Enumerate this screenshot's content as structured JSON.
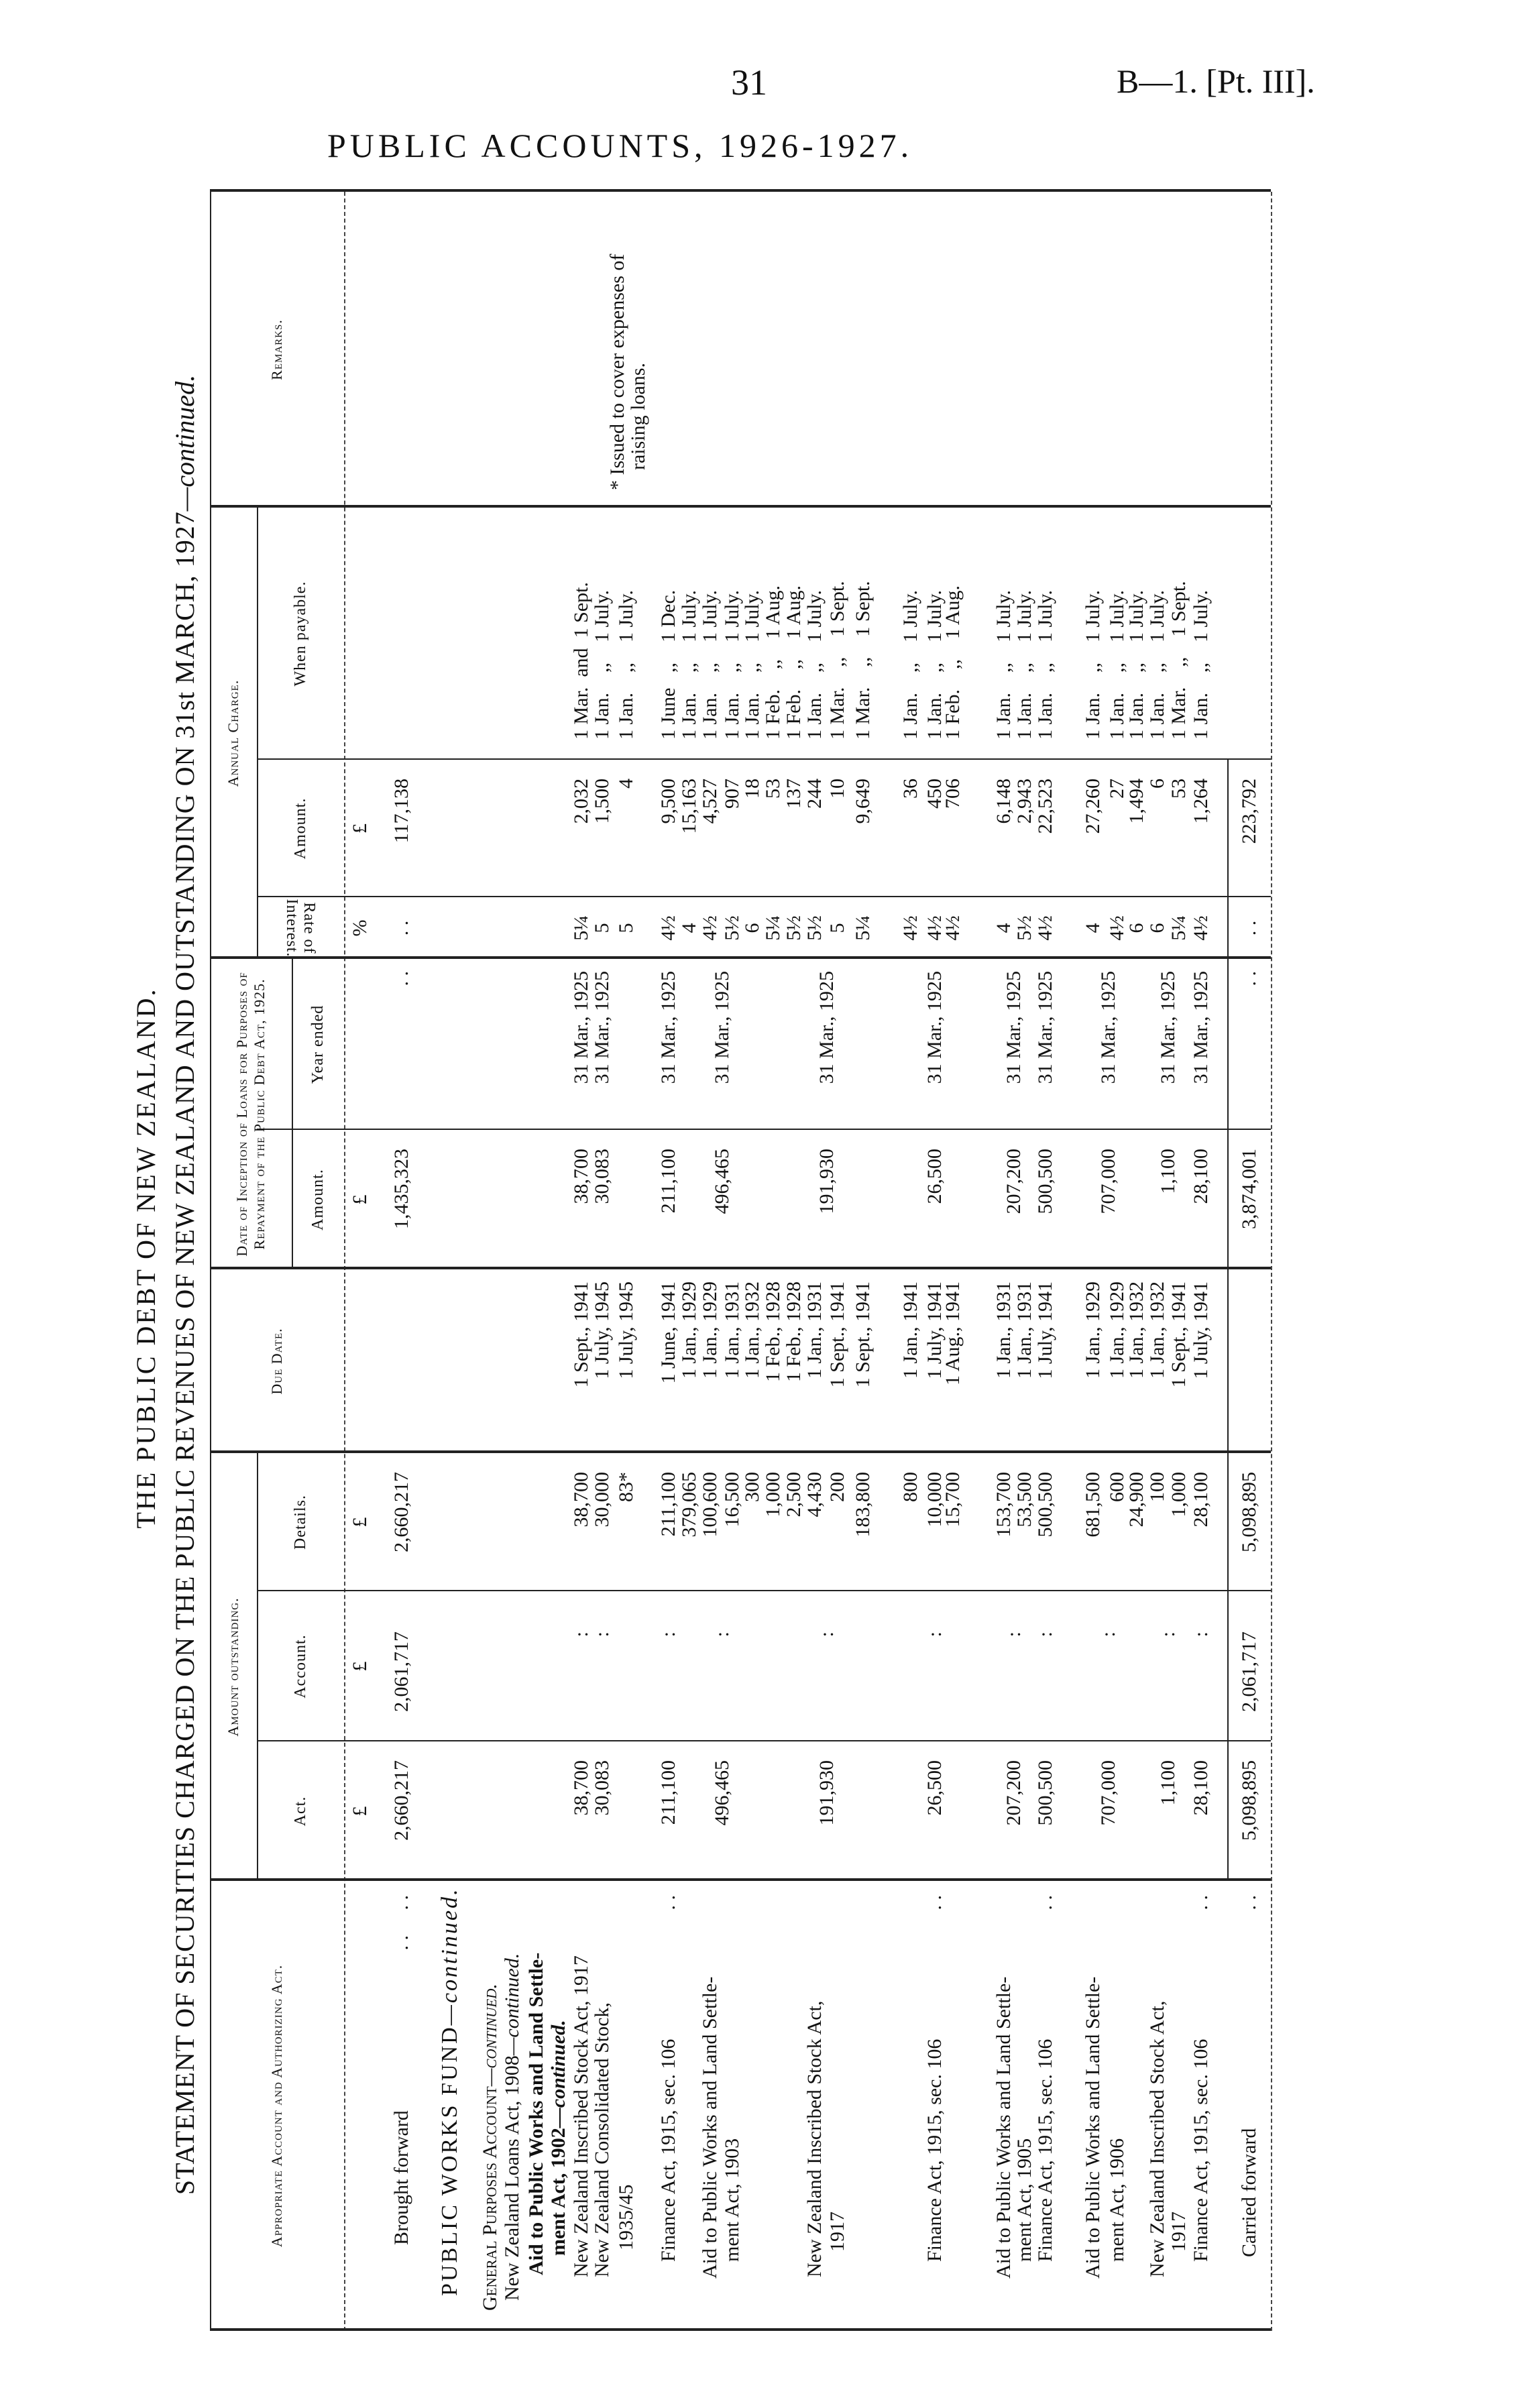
{
  "page": {
    "page_number": "31",
    "reference": "B—1. [Pt. III].",
    "running_title": "PUBLIC ACCOUNTS, 1926-1927."
  },
  "titles": {
    "main": "THE PUBLIC DEBT OF NEW ZEALAND.",
    "statement": "STATEMENT OF SECURITIES CHARGED ON THE PUBLIC REVENUES OF NEW ZEALAND AND OUTSTANDING ON 31st MARCH, 1927",
    "statement_suffix": "—continued."
  },
  "header": {
    "authorizing_act": "Appropriate Account and Authorizing Act.",
    "amount_outstanding": "Amount outstanding.",
    "act": "Act.",
    "account": "Account.",
    "details": "Details.",
    "due_date": "Due Date.",
    "inception": "Date of Inception of Loans for Purposes of Repayment of the Public Debt Act, 1925.",
    "inception_amount": "Amount.",
    "year_ended": "Year ended",
    "rate": "Rate of Interest.",
    "annual_charge": "Annual Charge.",
    "charge_amount": "Amount.",
    "when_payable": "When payable.",
    "remarks": "Remarks."
  },
  "remarks": {
    "line1": "* Issued to cover expenses of",
    "line2": "raising loans."
  },
  "table": {
    "rows": [
      {
        "act": "£",
        "account": "£",
        "details": "£",
        "inception_amount": "£",
        "rate": "%",
        "charge_amount": "£"
      },
      {
        "desc": "Brought forward",
        "leader": ". .     . .",
        "act": "2,660,217",
        "account": "2,061,717",
        "details": "2,660,217",
        "inception_amount": "1,435,323",
        "year_ended": ". .",
        "rate": ". .",
        "charge_amount": "117,138"
      },
      {
        "desc": "PUBLIC WORKS FUND",
        "cont": "—continued."
      },
      {
        "desc": "General Purposes Account",
        "cont": "—continued."
      },
      {
        "desc": "New Zealand Loans Act, 1908",
        "cont": "—continued."
      },
      {
        "desc": "Aid to Public Works and Land Settle-"
      },
      {
        "desc": "ment Act, 1902",
        "cont": "—continued."
      },
      {
        "desc": "New Zealand Inscribed Stock Act, 1917",
        "act": "38,700",
        "account": ":",
        "details": "38,700",
        "due_date": "1 Sept., 1941",
        "inception_amount": "38,700",
        "year_ended": "31 Mar., 1925",
        "rate": "5¼",
        "charge_amount": "2,032",
        "when_payable": "1 Mar.  and  1 Sept."
      },
      {
        "desc": "New Zealand Consolidated Stock,",
        "act": "30,083",
        "account": ":",
        "details": "30,000",
        "due_date": "1 July, 1945",
        "inception_amount": "30,083",
        "year_ended": "31 Mar., 1925",
        "rate": "5",
        "charge_amount": "1,500",
        "when_payable": "1 Jan.    ,,    1 July."
      },
      {
        "desc": "1935/45",
        "details": "83*",
        "due_date": "1 July, 1945",
        "rate": "5",
        "charge_amount": "4",
        "when_payable": "1 Jan.    ,,    1 July."
      },
      {
        "desc": "Finance Act, 1915, sec. 106",
        "leader": ". .",
        "act": "211,100",
        "account": ":",
        "details": "211,100",
        "due_date": "1 June, 1941",
        "inception_amount": "211,100",
        "year_ended": "31 Mar., 1925",
        "rate": "4½",
        "charge_amount": "9,500",
        "when_payable": "1 June   ,,    1 Dec."
      },
      {
        "details": "379,065",
        "due_date": "1 Jan., 1929",
        "rate": "4",
        "charge_amount": "15,163",
        "when_payable": "1 Jan.    ,,    1 July."
      },
      {
        "desc": "Aid to Public Works and Land Settle-",
        "details": "100,600",
        "due_date": "1 Jan., 1929",
        "rate": "4½",
        "charge_amount": "4,527",
        "when_payable": "1 Jan.    ,,    1 July."
      },
      {
        "act": "496,465",
        "account": ":",
        "inception_amount": "496,465",
        "year_ended": "31 Mar., 1925"
      },
      {
        "desc": "ment Act, 1903",
        "details": "16,500",
        "due_date": "1 Jan., 1931",
        "rate": "5½",
        "charge_amount": "907",
        "when_payable": "1 Jan.    ,,    1 July."
      },
      {
        "details": "300",
        "due_date": "1 Jan., 1932",
        "rate": "6",
        "charge_amount": "18",
        "when_payable": "1 Jan.    ,,    1 July."
      },
      {
        "details": "1,000",
        "due_date": "1 Feb., 1928",
        "rate": "5¼",
        "charge_amount": "53",
        "when_payable": "1 Feb.    ,,    1 Aug."
      },
      {
        "details": "2,500",
        "due_date": "1 Feb., 1928",
        "rate": "5½",
        "charge_amount": "137",
        "when_payable": "1 Feb.    ,,    1 Aug."
      },
      {
        "desc": "New Zealand Inscribed Stock Act,",
        "details": "4,430",
        "due_date": "1 Jan., 1931",
        "rate": "5½",
        "charge_amount": "244",
        "when_payable": "1 Jan.    ,,    1 July."
      },
      {
        "act": "191,930",
        "account": ":",
        "inception_amount": "191,930",
        "year_ended": "31 Mar., 1925"
      },
      {
        "desc": "1917",
        "details": "200",
        "due_date": "1 Sept., 1941",
        "rate": "5",
        "charge_amount": "10",
        "when_payable": "1 Mar.    ,,    1 Sept."
      },
      {
        "details": "183,800",
        "due_date": "1 Sept., 1941",
        "rate": "5¼",
        "charge_amount": "9,649",
        "when_payable": "1 Mar.    ,,    1 Sept."
      },
      {
        "details": "800",
        "due_date": "1 Jan., 1941",
        "rate": "4½",
        "charge_amount": "36",
        "when_payable": "1 Jan.    ,,    1 July."
      },
      {
        "desc": "Finance Act, 1915, sec. 106",
        "leader": ". .",
        "act": "26,500",
        "account": ":",
        "details": "10,000",
        "due_date": "1 July, 1941",
        "inception_amount": "26,500",
        "year_ended": "31 Mar., 1925",
        "rate": "4½",
        "charge_amount": "450",
        "when_payable": "1 Jan.    ,,    1 July."
      },
      {
        "details": "15,700",
        "due_date": "1 Aug., 1941",
        "rate": "4½",
        "charge_amount": "706",
        "when_payable": "1 Feb.    ,,    1 Aug."
      },
      {
        "desc": "Aid to Public Works and Land Settle-",
        "details": "153,700",
        "due_date": "1 Jan., 1931",
        "rate": "4",
        "charge_amount": "6,148",
        "when_payable": "1 Jan.    ,,    1 July."
      },
      {
        "act": "207,200",
        "account": ":",
        "inception_amount": "207,200",
        "year_ended": "31 Mar., 1925"
      },
      {
        "desc": "ment Act, 1905",
        "details": "53,500",
        "due_date": "1 Jan., 1931",
        "rate": "5½",
        "charge_amount": "2,943",
        "when_payable": "1 Jan.    ,,    1 July."
      },
      {
        "desc": "Finance Act, 1915, sec. 106",
        "leader": ". .",
        "act": "500,500",
        "account": ":",
        "details": "500,500",
        "due_date": "1 July, 1941",
        "inception_amount": "500,500",
        "year_ended": "31 Mar., 1925",
        "rate": "4½",
        "charge_amount": "22,523",
        "when_payable": "1 Jan.    ,,    1 July."
      },
      {
        "desc": "Aid to Public Works and Land Settle-",
        "details": "681,500",
        "due_date": "1 Jan., 1929",
        "rate": "4",
        "charge_amount": "27,260",
        "when_payable": "1 Jan.    ,,    1 July."
      },
      {
        "act": "707,000",
        "account": ":",
        "inception_amount": "707,000",
        "year_ended": "31 Mar., 1925"
      },
      {
        "desc": "ment Act, 1906",
        "details": "600",
        "due_date": "1 Jan., 1929",
        "rate": "4½",
        "charge_amount": "27",
        "when_payable": "1 Jan.    ,,    1 July."
      },
      {
        "details": "24,900",
        "due_date": "1 Jan., 1932",
        "rate": "6",
        "charge_amount": "1,494",
        "when_payable": "1 Jan.    ,,    1 July."
      },
      {
        "desc": "New Zealand Inscribed Stock Act,",
        "details": "100",
        "due_date": "1 Jan., 1932",
        "rate": "6",
        "charge_amount": "6",
        "when_payable": "1 Jan.    ,,    1 July."
      },
      {
        "act": "1,100",
        "account": ":",
        "inception_amount": "1,100",
        "year_ended": "31 Mar., 1925"
      },
      {
        "desc": "1917",
        "details": "1,000",
        "due_date": "1 Sept., 1941",
        "rate": "5¼",
        "charge_amount": "53",
        "when_payable": "1 Mar.    ,,    1 Sept."
      },
      {
        "desc": "Finance Act, 1915, sec. 106",
        "leader": ". .",
        "act": "28,100",
        "account": ":",
        "details": "28,100",
        "due_date": "1 July, 1941",
        "inception_amount": "28,100",
        "year_ended": "31 Mar., 1925",
        "rate": "4½",
        "charge_amount": "1,264",
        "when_payable": "1 Jan.    ,,    1 July."
      },
      {
        "desc": "Carried forward",
        "leader": ". .",
        "act": "5,098,895",
        "account": "2,061,717",
        "details": "5,098,895",
        "inception_amount": "3,874,001",
        "year_ended": ". .",
        "rate": ". .",
        "charge_amount": "223,792"
      }
    ]
  }
}
